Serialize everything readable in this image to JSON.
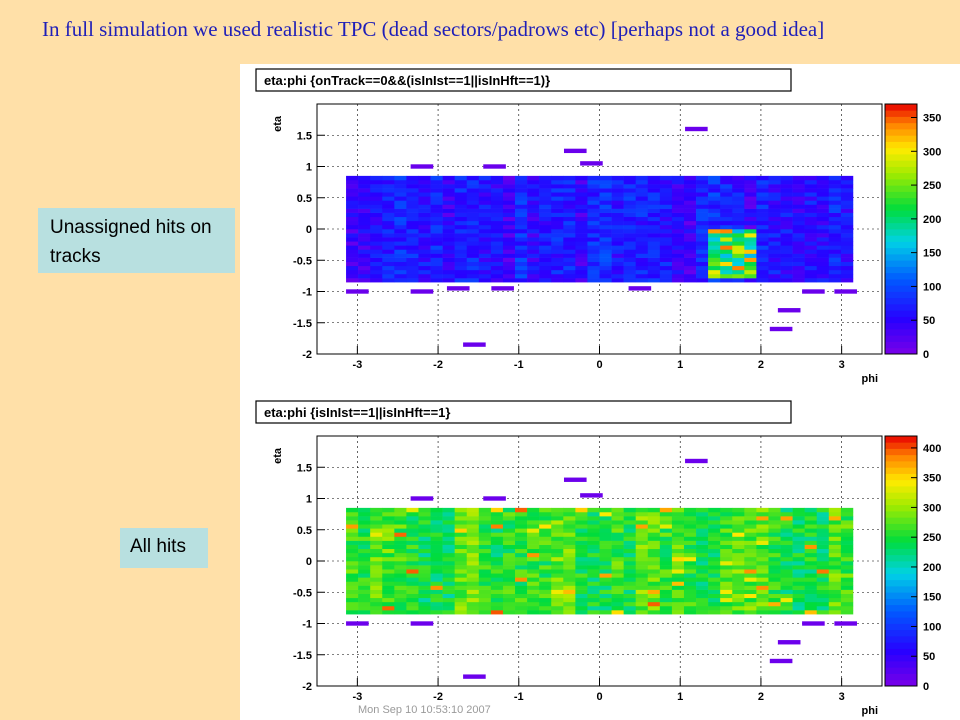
{
  "slide": {
    "title": "In full simulation we used realistic TPC (dead sectors/padrows etc) [perhaps not a good idea]",
    "labels": {
      "unassigned": "Unassigned hits on tracks",
      "all": "All hits"
    },
    "footer": "Mon Sep 10 10:53:10 2007"
  },
  "colors": {
    "background": "#FFE0A8",
    "title": "#1F1FB8",
    "label_box": "#B8E0E0",
    "palette_low": "#7A00E8",
    "palette_high": "#E80000"
  },
  "chart_data": [
    {
      "type": "heatmap",
      "title": "eta:phi {onTrack==0&&(isInIst==1||isInHft==1)}",
      "xlabel": "phi",
      "ylabel": "eta",
      "xlim": [
        -3.5,
        3.5
      ],
      "ylim": [
        -2,
        2
      ],
      "x_ticks": [
        "-3",
        "-2",
        "-1",
        "0",
        "1",
        "2",
        "3"
      ],
      "y_ticks": [
        "-2",
        "-1.5",
        "-1",
        "-0.5",
        "0",
        "0.5",
        "1",
        "1.5"
      ],
      "zlim": [
        0,
        370
      ],
      "z_ticks": [
        "0",
        "50",
        "100",
        "150",
        "200",
        "250",
        "300",
        "350"
      ],
      "grid": true,
      "band": {
        "phi_range": [
          -3.14,
          3.14
        ],
        "eta_range": [
          -0.85,
          0.85
        ],
        "typical_value_range": [
          10,
          110
        ]
      },
      "hot_spot": {
        "phi_range": [
          1.2,
          1.9
        ],
        "eta_range": [
          -0.8,
          0.0
        ],
        "value_range": [
          150,
          350
        ]
      },
      "outliers": [
        {
          "phi": 1.2,
          "eta": 1.6,
          "value": 10
        },
        {
          "phi": -0.3,
          "eta": 1.25,
          "value": 10
        },
        {
          "phi": -0.1,
          "eta": 1.05,
          "value": 10
        },
        {
          "phi": -2.2,
          "eta": 1.0,
          "value": 10
        },
        {
          "phi": -1.3,
          "eta": 1.0,
          "value": 10
        },
        {
          "phi": -3.0,
          "eta": -1.0,
          "value": 10
        },
        {
          "phi": -2.2,
          "eta": -1.0,
          "value": 10
        },
        {
          "phi": -1.75,
          "eta": -0.95,
          "value": 10
        },
        {
          "phi": -1.2,
          "eta": -0.95,
          "value": 10
        },
        {
          "phi": 0.5,
          "eta": -0.95,
          "value": 10
        },
        {
          "phi": 2.65,
          "eta": -1.0,
          "value": 10
        },
        {
          "phi": 3.05,
          "eta": -1.0,
          "value": 10
        },
        {
          "phi": 2.35,
          "eta": -1.3,
          "value": 10
        },
        {
          "phi": 2.25,
          "eta": -1.6,
          "value": 10
        },
        {
          "phi": -1.55,
          "eta": -1.85,
          "value": 10
        }
      ]
    },
    {
      "type": "heatmap",
      "title": "eta:phi {isInIst==1||isInHft==1}",
      "xlabel": "phi",
      "ylabel": "eta",
      "xlim": [
        -3.5,
        3.5
      ],
      "ylim": [
        -2,
        2
      ],
      "x_ticks": [
        "-3",
        "-2",
        "-1",
        "0",
        "1",
        "2",
        "3"
      ],
      "y_ticks": [
        "-2",
        "-1.5",
        "-1",
        "-0.5",
        "0",
        "0.5",
        "1",
        "1.5"
      ],
      "zlim": [
        0,
        420
      ],
      "z_ticks": [
        "0",
        "50",
        "100",
        "150",
        "200",
        "250",
        "300",
        "350",
        "400"
      ],
      "grid": true,
      "band": {
        "phi_range": [
          -3.14,
          3.14
        ],
        "eta_range": [
          -0.85,
          0.85
        ],
        "typical_value_range": [
          200,
          320
        ]
      },
      "outliers": [
        {
          "phi": 1.2,
          "eta": 1.6,
          "value": 10
        },
        {
          "phi": -0.3,
          "eta": 1.3,
          "value": 10
        },
        {
          "phi": -0.1,
          "eta": 1.05,
          "value": 10
        },
        {
          "phi": -2.2,
          "eta": 1.0,
          "value": 10
        },
        {
          "phi": -1.3,
          "eta": 1.0,
          "value": 10
        },
        {
          "phi": -3.0,
          "eta": -1.0,
          "value": 10
        },
        {
          "phi": -2.2,
          "eta": -1.0,
          "value": 10
        },
        {
          "phi": 2.65,
          "eta": -1.0,
          "value": 10
        },
        {
          "phi": 3.05,
          "eta": -1.0,
          "value": 10
        },
        {
          "phi": 2.35,
          "eta": -1.3,
          "value": 10
        },
        {
          "phi": 2.25,
          "eta": -1.6,
          "value": 10
        },
        {
          "phi": -1.55,
          "eta": -1.85,
          "value": 10
        }
      ]
    }
  ]
}
